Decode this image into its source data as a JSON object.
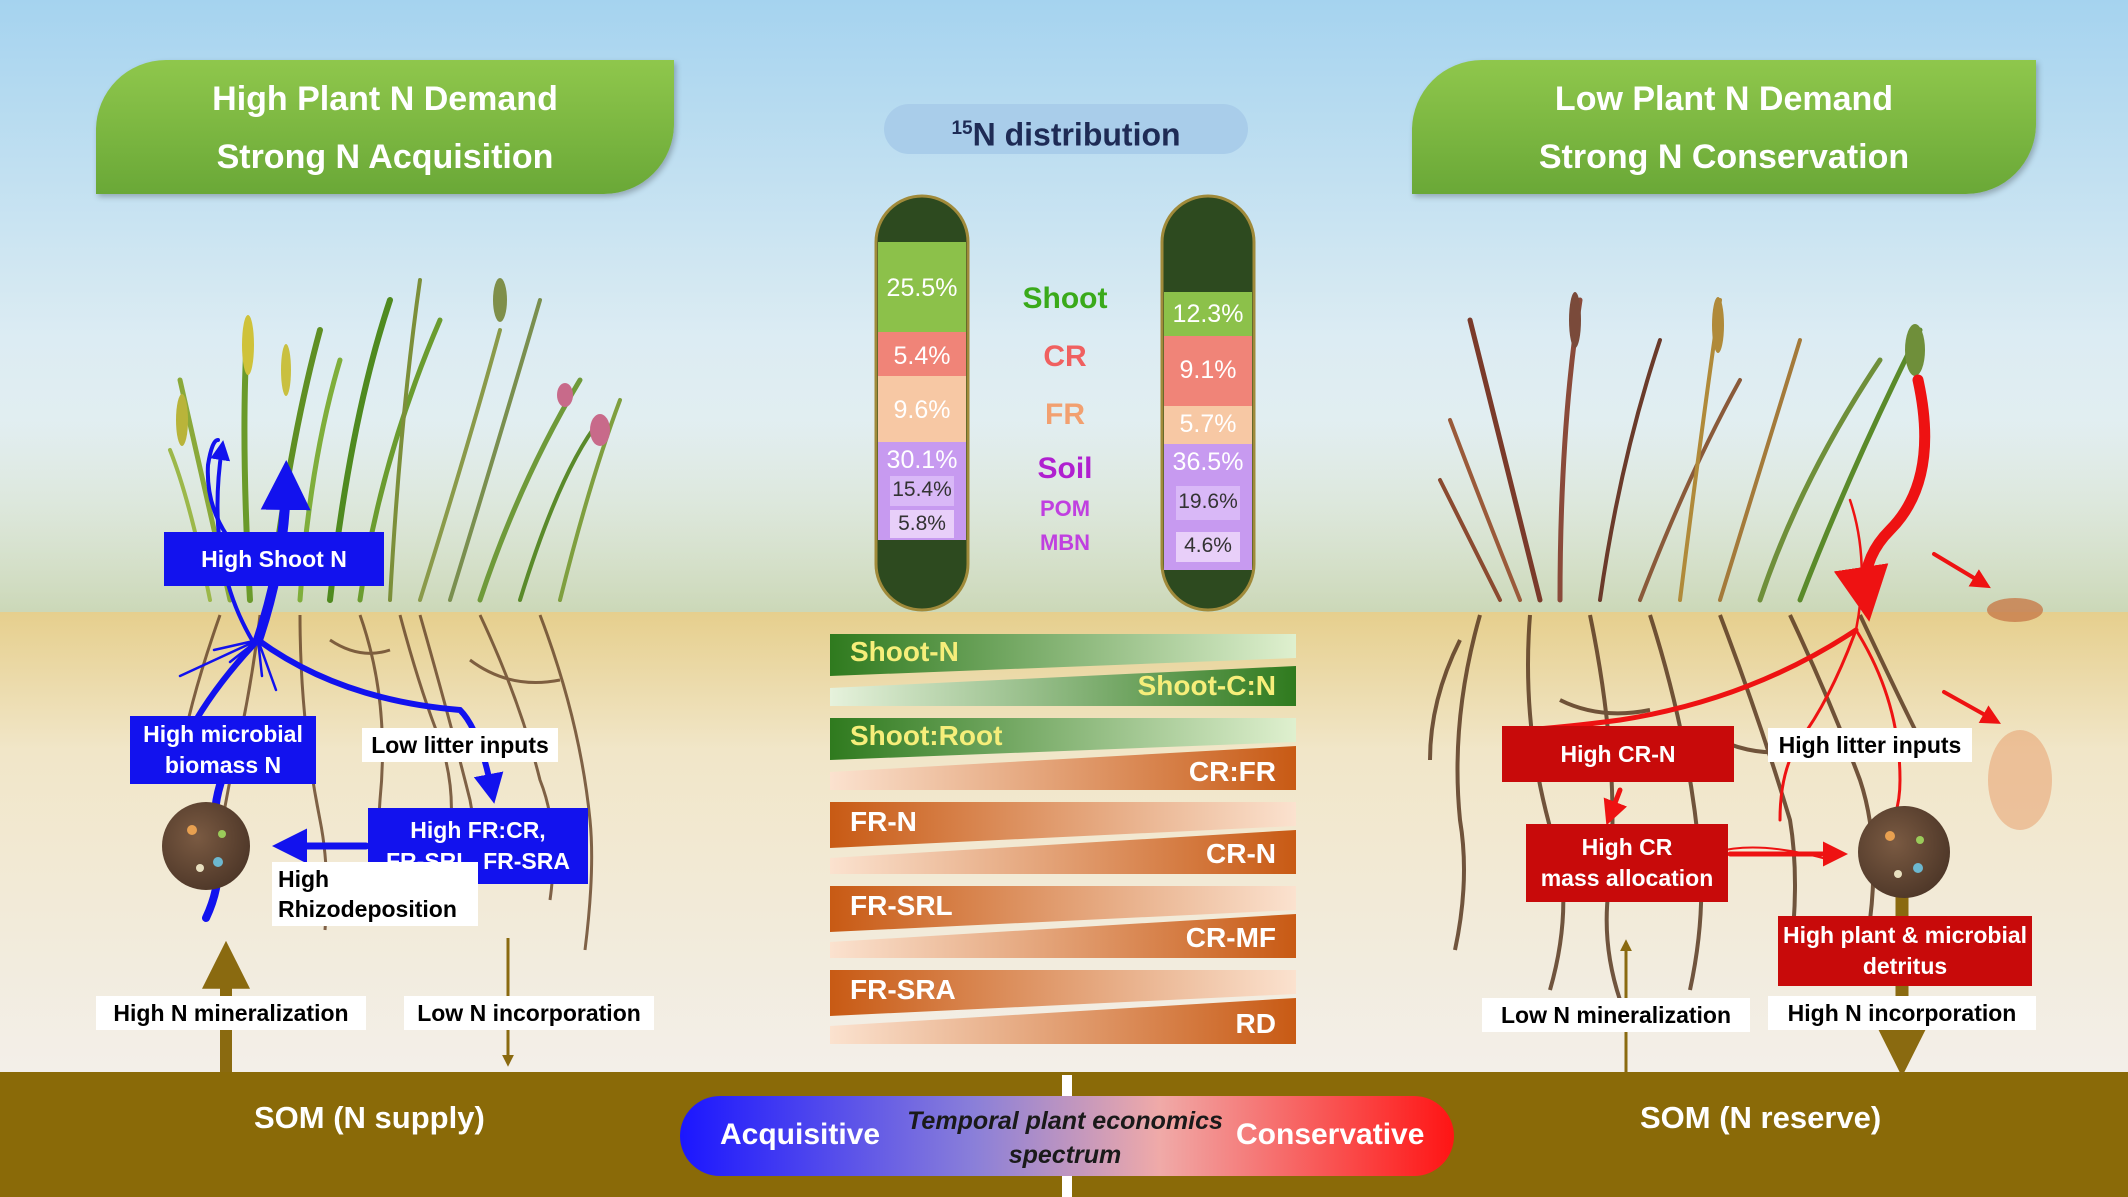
{
  "left_header": {
    "line1": "High Plant N Demand",
    "line2": "Strong N Acquisition"
  },
  "right_header": {
    "line1": "Low Plant N Demand",
    "line2": "Strong N Conservation"
  },
  "distribution_title": "N distribution",
  "distribution_title_sup": "15",
  "tube_left": {
    "shoot": "25.5%",
    "cr": "5.4%",
    "fr": "9.6%",
    "soil": "30.1%",
    "pom": "15.4%",
    "mbn": "5.8%"
  },
  "tube_right": {
    "shoot": "12.3%",
    "cr": "9.1%",
    "fr": "5.7%",
    "soil": "36.5%",
    "pom": "19.6%",
    "mbn": "4.6%"
  },
  "fraction_labels": {
    "shoot": "Shoot",
    "cr": "CR",
    "fr": "FR",
    "soil": "Soil",
    "pom": "POM",
    "mbn": "MBN"
  },
  "wedges": [
    {
      "left": "Shoot-N",
      "right": "Shoot-C:N"
    },
    {
      "left": "Shoot:Root",
      "right": "CR:FR"
    },
    {
      "left": "FR-N",
      "right": "CR-N"
    },
    {
      "left": "FR-SRL",
      "right": "CR-MF"
    },
    {
      "left": "FR-SRA",
      "right": "RD"
    }
  ],
  "left_boxes": {
    "high_shoot_n": "High Shoot N",
    "microbial_line1": "High microbial",
    "microbial_line2": "biomass N",
    "fr_line1": "High FR:CR,",
    "fr_line2": "FR-SRL, FR-SRA",
    "low_litter": "Low litter inputs",
    "rhizo_line1": "High",
    "rhizo_line2": "Rhizodeposition",
    "mineralization": "High N mineralization",
    "incorporation": "Low N incorporation"
  },
  "right_boxes": {
    "cr_n": "High CR-N",
    "cr_mass_line1": "High CR",
    "cr_mass_line2": "mass allocation",
    "litter": "High litter inputs",
    "detritus_line1": "High plant & microbial",
    "detritus_line2": "detritus",
    "mineralization": "Low N mineralization",
    "incorporation": "High N incorporation"
  },
  "som_left": "SOM (N supply)",
  "som_right": "SOM (N reserve)",
  "spectrum": {
    "left": "Acquisitive",
    "right": "Conservative",
    "center_line1": "Temporal plant economics",
    "center_line2": "spectrum"
  }
}
